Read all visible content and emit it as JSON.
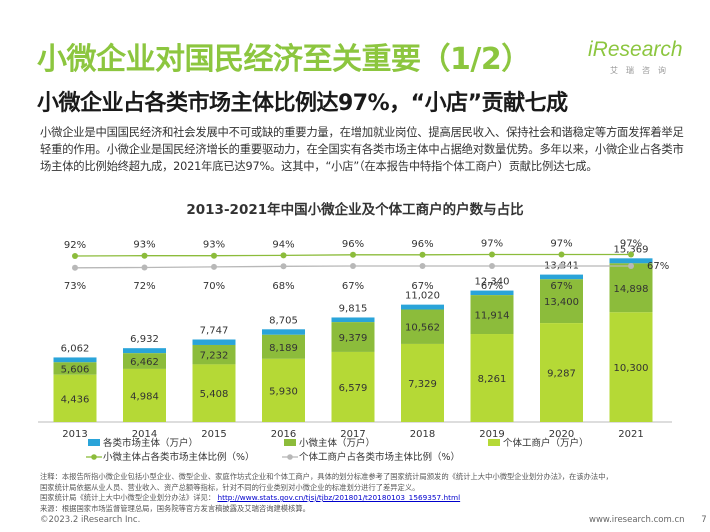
{
  "header": {
    "title": "小微企业对国民经济至关重要（1/2）",
    "subtitle": "小微企业占各类市场主体比例达97%，“小店”贡献七成",
    "logo_text": "iResearch",
    "logo_sub": "艾瑞咨询"
  },
  "intro": {
    "text": "小微企业是中国国民经济和社会发展中不可或缺的重要力量，在增加就业岗位、提高居民收入、保持社会和谐稳定等方面发挥着举足轻重的作用。小微企业是国民经济增长的重要驱动力，在全国实有各类市场主体中占据绝对数量优势。多年以来，小微企业占各类市场主体的比例始终超九成，2021年底已达97%。这其中，“小店”（在本报告中特指个体工商户）贡献比例达七成。"
  },
  "chart_data": {
    "type": "bar",
    "title": "2013-2021年中国小微企业及个体工商户的户数与占比",
    "categories": [
      "2013",
      "2014",
      "2015",
      "2016",
      "2017",
      "2018",
      "2019",
      "2020",
      "2021"
    ],
    "series": [
      {
        "name": "各类市场主体（万户）",
        "type": "bar",
        "color": "#2aa4d9",
        "values": [
          6062,
          6932,
          7747,
          8705,
          9815,
          11020,
          12340,
          13841,
          15369
        ]
      },
      {
        "name": "小微主体（万户）",
        "type": "bar",
        "color": "#8cbc3b",
        "values": [
          5606,
          6462,
          7232,
          8189,
          9379,
          10562,
          11914,
          13400,
          14898
        ]
      },
      {
        "name": "个体工商户（万户）",
        "type": "bar",
        "color": "#b5d936",
        "values": [
          4436,
          4984,
          5408,
          5930,
          6579,
          7329,
          8261,
          9287,
          10300
        ]
      },
      {
        "name": "小微主体占各类市场主体比例（%）",
        "type": "line",
        "color": "#8cbc3b",
        "values": [
          92,
          93,
          93,
          94,
          96,
          96,
          97,
          97,
          97
        ]
      },
      {
        "name": "个体工商户占各类市场主体比例（%）",
        "type": "line",
        "color": "#b8b8b8",
        "values": [
          73,
          72,
          70,
          68,
          67,
          67,
          67,
          67,
          67
        ]
      }
    ],
    "pct_labels": {
      "small": [
        "92%",
        "93%",
        "93%",
        "94%",
        "96%",
        "96%",
        "97%",
        "97%",
        "97%"
      ],
      "individual": [
        "73%",
        "72%",
        "70%",
        "68%",
        "67%",
        "67%",
        "67%",
        "67%",
        "67%"
      ]
    },
    "bar_labels": {
      "total": [
        "6,062",
        "6,932",
        "7,747",
        "8,705",
        "9,815",
        "11,020",
        "12,340",
        "13,841",
        "15,369"
      ],
      "small": [
        "5,606",
        "6,462",
        "7,232",
        "8,189",
        "9,379",
        "10,562",
        "11,914",
        "13,400",
        "14,898"
      ],
      "individual": [
        "4,436",
        "4,984",
        "5,408",
        "5,930",
        "6,579",
        "7,329",
        "8,261",
        "9,287",
        "10,300"
      ]
    },
    "legend": [
      "各类市场主体（万户）",
      "小微主体（万户）",
      "个体工商户（万户）",
      "小微主体占各类市场主体比例（%）",
      "个体工商户占各类市场主体比例（%）"
    ],
    "grid": false,
    "legend_position": "bottom"
  },
  "notes": {
    "line1": "注释：本报告所指小微企业包括小型企业、微型企业、家庭作坊式企业和个体工商户，具体的划分标准参考了国家统计局颁发的《统计上大中小微型企业划分办法》，在该办法中，",
    "line2": "国家统计局依据从业人员、营业收入、资产总额等指标，针对不同的行业类别对小微企业的标准划分进行了差异定义。",
    "line3_prefix": "国家统计局《统计上大中小微型企业划分办法》详见：",
    "line3_link": "http://www.stats.gov.cn/tjsj/tjbz/201801/t20180103_1569357.html",
    "line4": "来源：根据国家市场监督管理总局，国务院等官方发言稿披露及艾瑞咨询建模核算。"
  },
  "footer": {
    "copyright": "©2023.2 iResearch Inc.",
    "url": "www.iresearch.com.cn",
    "page": "7"
  }
}
